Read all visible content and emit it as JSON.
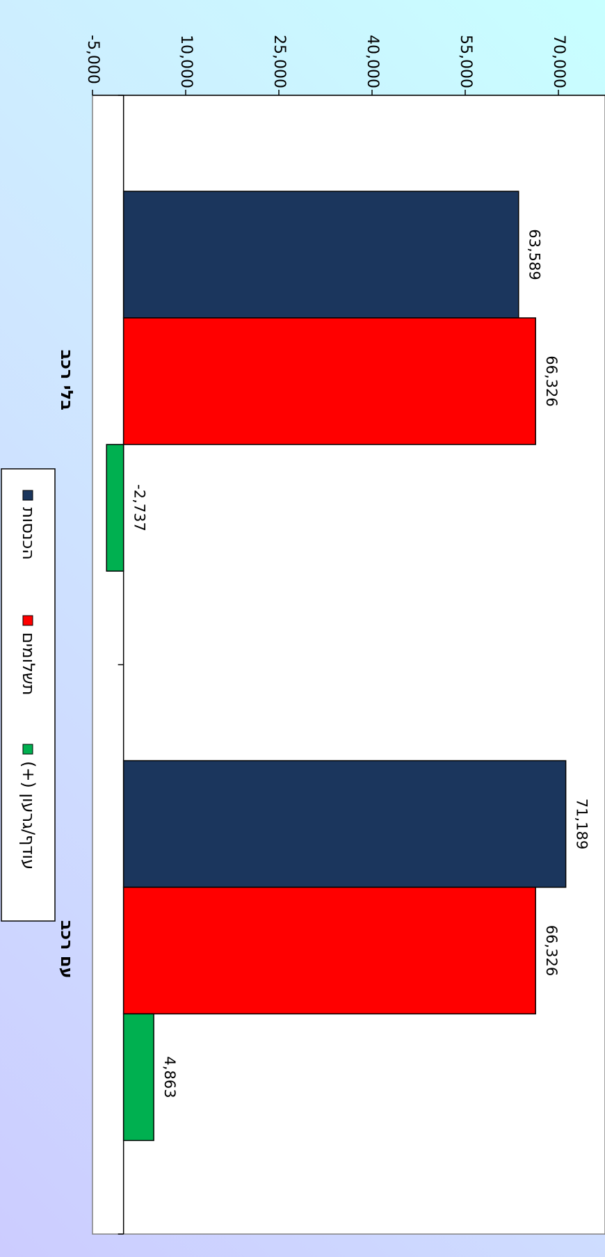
{
  "chart_data": {
    "type": "bar",
    "categories": [
      "בלי רכב",
      "עם רכב"
    ],
    "series": [
      {
        "name": "הכנסות",
        "values": [
          63589,
          71189
        ],
        "color": "#1b365d"
      },
      {
        "name": "תשלומים",
        "values": [
          66326,
          66326
        ],
        "color": "#ff0000"
      },
      {
        "name": "עודף/גרעון (+)",
        "values": [
          -2737,
          4863
        ],
        "color": "#00b050"
      }
    ],
    "data_labels": [
      [
        "63,589",
        "71,189"
      ],
      [
        "66,326",
        "66,326"
      ],
      [
        "-2,737",
        "4,863"
      ]
    ],
    "value_axis": {
      "min": -5000,
      "max": 70000,
      "ticks": [
        -5000,
        10000,
        25000,
        40000,
        55000,
        70000
      ],
      "tick_labels": [
        "-5,000",
        "10,000",
        "25,000",
        "40,000",
        "55,000",
        "70,000"
      ]
    },
    "title": "",
    "xlabel": "",
    "ylabel": "",
    "legend_position": "left",
    "orientation": "rotated-90-clockwise",
    "grid": false
  }
}
